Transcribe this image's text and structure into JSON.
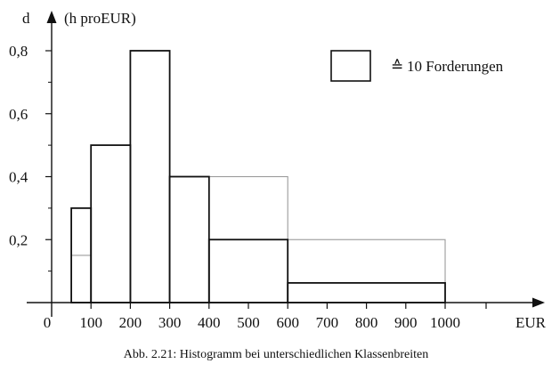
{
  "chart_data": {
    "type": "bar",
    "title": "",
    "caption": "Abb. 2.21: Histogramm bei unterschiedlichen Klassenbreiten",
    "ylabel_symbol": "d",
    "ylabel_unit": "(h proEUR)",
    "xlabel": "EUR",
    "xlim": [
      0,
      1000
    ],
    "ylim": [
      0,
      0.9
    ],
    "x_ticks": [
      0,
      100,
      200,
      300,
      400,
      500,
      600,
      700,
      800,
      900,
      1000
    ],
    "x_tick_labels": [
      "0",
      "100",
      "200",
      "300",
      "400",
      "500",
      "600",
      "700",
      "800",
      "900",
      "1000"
    ],
    "y_ticks": [
      0.2,
      0.4,
      0.6,
      0.8
    ],
    "y_tick_labels": [
      "0,2",
      "0,4",
      "0,6",
      "0,8"
    ],
    "grid": false,
    "bins": [
      {
        "from": 50,
        "to": 100,
        "density": 0.3
      },
      {
        "from": 100,
        "to": 200,
        "density": 0.5
      },
      {
        "from": 200,
        "to": 300,
        "density": 0.8
      },
      {
        "from": 300,
        "to": 400,
        "density": 0.4
      },
      {
        "from": 400,
        "to": 600,
        "density": 0.2
      },
      {
        "from": 600,
        "to": 1000,
        "density": 0.0625
      }
    ],
    "reference_rectangles": [
      {
        "from": 50,
        "to": 100,
        "density": 0.15
      },
      {
        "from": 300,
        "to": 600,
        "density": 0.4
      },
      {
        "from": 400,
        "to": 1000,
        "density": 0.2
      }
    ],
    "legend": {
      "symbol": "≙",
      "text": "10 Forderungen",
      "position": "top-right"
    },
    "colors": {
      "bar_stroke": "#111111",
      "reference_stroke": "#9a9a9a",
      "axis": "#111111"
    }
  }
}
